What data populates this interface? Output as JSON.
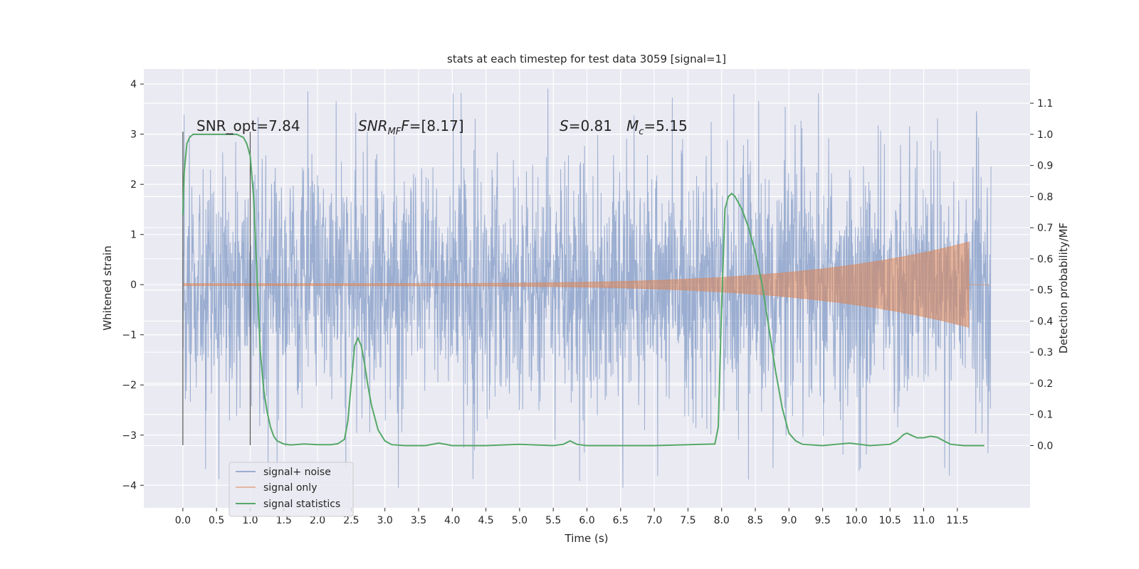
{
  "chart_data": {
    "type": "line",
    "title": "stats at each timestep for test data 3059 [signal=1]",
    "xlabel": "Time (s)",
    "ylabel": "Whitened strain",
    "ylabel_right": "Detection probability/MF",
    "xlim": [
      -0.58,
      12.58
    ],
    "ylim": [
      -4.45,
      4.3
    ],
    "ylim_right": [
      -0.2,
      1.21
    ],
    "xticks": [
      0.0,
      0.5,
      1.0,
      1.5,
      2.0,
      2.5,
      3.0,
      3.5,
      4.0,
      4.5,
      5.0,
      5.5,
      6.0,
      6.5,
      7.0,
      7.5,
      8.0,
      8.5,
      9.0,
      9.5,
      10.0,
      10.5,
      11.0,
      11.5
    ],
    "xtick_labels": [
      "0.0",
      "0.5",
      "1.0",
      "1.5",
      "2.0",
      "2.5",
      "3.0",
      "3.5",
      "4.0",
      "4.5",
      "5.0",
      "5.5",
      "6.0",
      "6.5",
      "7.0",
      "7.5",
      "8.0",
      "8.5",
      "9.0",
      "9.5",
      "10.0",
      "10.5",
      "11.0",
      "11.5"
    ],
    "yticks": [
      -4,
      -3,
      -2,
      -1,
      0,
      1,
      2,
      3,
      4
    ],
    "ytick_labels": [
      "−4",
      "−3",
      "−2",
      "−1",
      "0",
      "1",
      "2",
      "3",
      "4"
    ],
    "yticks_right": [
      0.0,
      0.1,
      0.2,
      0.3,
      0.4,
      0.5,
      0.6,
      0.7,
      0.8,
      0.9,
      1.0,
      1.1
    ],
    "ytick_labels_right": [
      "0.0",
      "0.1",
      "0.2",
      "0.3",
      "0.4",
      "0.5",
      "0.6",
      "0.7",
      "0.8",
      "0.9",
      "1.0",
      "1.1"
    ],
    "grid": true,
    "legend_position": "lower-left",
    "annotations": {
      "snr_opt": "SNR_opt=7.84",
      "snr_mf_main": "SNR",
      "snr_mf_sub": "MF",
      "snr_mf_val": "=[8.17]",
      "s_main": "S",
      "s_val": "=0.81",
      "mc_main": "M",
      "mc_sub": "c",
      "mc_val": "=5.15"
    },
    "vlines_x": [
      0.0,
      1.0
    ],
    "series": [
      {
        "name": "signal+ noise",
        "color": "#4c72b0",
        "style": "noise",
        "x_range": [
          0.0,
          12.0
        ],
        "typical_band": [
          -1.8,
          1.8
        ],
        "extremes": [
          -4.05,
          3.92
        ]
      },
      {
        "name": "signal only",
        "color": "#dd8452",
        "style": "chirp",
        "x_range": [
          0.0,
          11.67
        ],
        "amplitude_start": 0.02,
        "amplitude_end": 0.85
      },
      {
        "name": "signal statistics",
        "color": "#55a868",
        "axis": "right",
        "x": [
          0.0,
          0.02,
          0.06,
          0.1,
          0.15,
          0.2,
          0.3,
          0.5,
          0.7,
          0.8,
          0.9,
          0.95,
          1.0,
          1.05,
          1.1,
          1.15,
          1.2,
          1.25,
          1.3,
          1.35,
          1.4,
          1.5,
          1.6,
          1.8,
          2.0,
          2.2,
          2.3,
          2.4,
          2.45,
          2.5,
          2.55,
          2.6,
          2.65,
          2.7,
          2.75,
          2.8,
          2.9,
          3.0,
          3.1,
          3.3,
          3.6,
          3.8,
          4.0,
          4.5,
          5.0,
          5.5,
          5.65,
          5.75,
          5.85,
          6.0,
          7.0,
          7.9,
          7.95,
          8.0,
          8.05,
          8.1,
          8.15,
          8.2,
          8.3,
          8.4,
          8.5,
          8.6,
          8.7,
          8.8,
          8.9,
          9.0,
          9.1,
          9.2,
          9.5,
          9.9,
          10.2,
          10.5,
          10.6,
          10.7,
          10.75,
          10.8,
          10.9,
          11.0,
          11.1,
          11.2,
          11.3,
          11.4,
          11.6,
          11.7,
          11.9
        ],
        "y": [
          0.74,
          0.88,
          0.97,
          0.99,
          1.0,
          1.0,
          1.0,
          1.0,
          1.0,
          1.0,
          0.99,
          0.97,
          0.93,
          0.8,
          0.55,
          0.3,
          0.18,
          0.11,
          0.06,
          0.03,
          0.015,
          0.005,
          0.002,
          0.005,
          0.003,
          0.003,
          0.006,
          0.02,
          0.08,
          0.2,
          0.32,
          0.345,
          0.32,
          0.26,
          0.19,
          0.13,
          0.05,
          0.015,
          0.003,
          0.0,
          0.0,
          0.008,
          0.0,
          0.0,
          0.004,
          0.0,
          0.004,
          0.015,
          0.004,
          0.0,
          0.0,
          0.005,
          0.06,
          0.45,
          0.76,
          0.8,
          0.81,
          0.8,
          0.76,
          0.7,
          0.62,
          0.52,
          0.38,
          0.24,
          0.12,
          0.04,
          0.015,
          0.004,
          0.0,
          0.008,
          0.0,
          0.004,
          0.015,
          0.035,
          0.04,
          0.035,
          0.025,
          0.025,
          0.03,
          0.027,
          0.015,
          0.004,
          0.0,
          0.0,
          0.0
        ]
      }
    ]
  }
}
